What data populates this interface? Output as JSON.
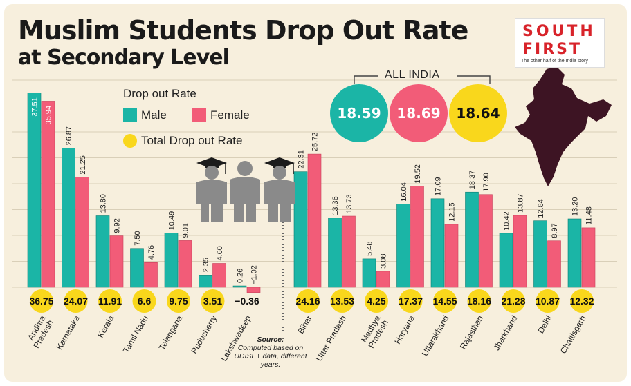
{
  "header": {
    "title_line1": "Muslim Students Drop Out Rate",
    "title_line2": "at Secondary Level"
  },
  "logo": {
    "line1": "SOUTH",
    "line2": "FIRST",
    "tagline": "The other half of the India story"
  },
  "legend": {
    "title": "Drop out Rate",
    "male": "Male",
    "female": "Female",
    "total": "Total Drop out Rate"
  },
  "all_india": {
    "label": "ALL INDIA",
    "male": "18.59",
    "female": "18.69",
    "total": "18.64"
  },
  "source": {
    "label": "Source:",
    "text": "Computed based on UDISE+ data, different years."
  },
  "colors": {
    "male": "#1bb5a6",
    "female": "#f25c78",
    "total": "#f9d71c",
    "background": "#f7efdd",
    "map": "#3d1423"
  },
  "chart_data": {
    "type": "bar",
    "ylim": [
      0,
      40
    ],
    "categories": [
      "Andhra Pradesh",
      "Karnataka",
      "Kerala",
      "Tamil Nadu",
      "Telangana",
      "Puducherry",
      "Lakshwadeep",
      "Bihar",
      "Uttar Pradesh",
      "Madhya Pradesh",
      "Haryana",
      "Uttarakhand",
      "Rajasthan",
      "Jharkhand",
      "Delhi",
      "Chattisgarh"
    ],
    "series": [
      {
        "name": "Male",
        "values": [
          37.51,
          26.87,
          13.8,
          7.5,
          10.49,
          2.35,
          0.26,
          22.31,
          13.36,
          5.48,
          16.04,
          17.09,
          18.37,
          10.42,
          12.84,
          13.2
        ]
      },
      {
        "name": "Female",
        "values": [
          35.94,
          21.25,
          9.92,
          4.76,
          9.01,
          4.6,
          -1.02,
          25.72,
          13.73,
          3.08,
          19.52,
          12.15,
          17.9,
          13.87,
          8.97,
          11.48
        ]
      },
      {
        "name": "Total Drop out Rate",
        "values": [
          36.75,
          24.07,
          11.91,
          6.6,
          9.75,
          3.51,
          -0.36,
          24.16,
          13.53,
          4.25,
          17.37,
          14.55,
          18.16,
          21.28,
          10.87,
          12.32
        ]
      }
    ],
    "value_labels": {
      "male": [
        "37.51",
        "26.87",
        "13.80",
        "7.50",
        "10.49",
        "2.35",
        "0.26",
        "22.31",
        "13.36",
        "5.48",
        "16.04",
        "17.09",
        "18.37",
        "10.42",
        "12.84",
        "13.20"
      ],
      "female": [
        "35.94",
        "21.25",
        "9.92",
        "4.76",
        "9.01",
        "4.60",
        "−1.02",
        "25.72",
        "13.73",
        "3.08",
        "19.52",
        "12.15",
        "17.90",
        "13.87",
        "8.97",
        "11.48"
      ],
      "total": [
        "36.75",
        "24.07",
        "11.91",
        "6.6",
        "9.75",
        "3.51",
        "−0.36",
        "24.16",
        "13.53",
        "4.25",
        "17.37",
        "14.55",
        "18.16",
        "21.28",
        "10.87",
        "12.32"
      ]
    },
    "category_labels": [
      "Andhra\nPradesh",
      "Karnataka",
      "Kerala",
      "Tamil Nadu",
      "Telangana",
      "Puducherry",
      "Lakshwadeep",
      "Bihar",
      "Uttar Pradesh",
      "Madhya\nPradesh",
      "Haryana",
      "Uttarakhand",
      "Rajasthan",
      "Jharkhand",
      "Delhi",
      "Chattisgarh"
    ],
    "grid": true,
    "legend_position": "top-left"
  }
}
